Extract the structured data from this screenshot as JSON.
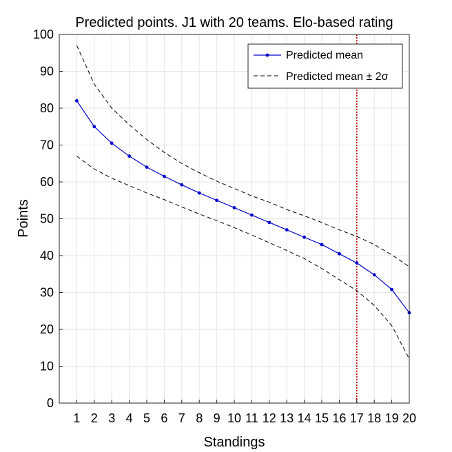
{
  "chart_data": {
    "type": "line",
    "title": "Predicted points. J1 with 20 teams. Elo-based rating",
    "xlabel": "Standings",
    "ylabel": "Points",
    "x": [
      1,
      2,
      3,
      4,
      5,
      6,
      7,
      8,
      9,
      10,
      11,
      12,
      13,
      14,
      15,
      16,
      17,
      18,
      19,
      20
    ],
    "xlim": [
      0,
      20
    ],
    "ylim": [
      0,
      100
    ],
    "yticks": [
      0,
      10,
      20,
      30,
      40,
      50,
      60,
      70,
      80,
      90,
      100
    ],
    "grid": true,
    "legend_position": "top-right",
    "series": [
      {
        "name": "Predicted mean",
        "color": "#0000cc",
        "style": "solid-marker",
        "values": [
          82,
          75,
          70.5,
          67,
          64,
          61.5,
          59.2,
          57,
          55,
          53,
          51,
          49,
          47,
          45,
          43,
          40.5,
          38,
          34.8,
          30.8,
          24.5
        ]
      },
      {
        "name": "Predicted mean ± 2σ",
        "color": "#000000",
        "style": "dashed",
        "values": [
          97,
          86.5,
          80,
          75.5,
          71.5,
          68,
          65,
          62.5,
          60.2,
          58.2,
          56.2,
          54.5,
          52.5,
          50.8,
          49,
          47,
          45.2,
          43,
          40.2,
          37
        ]
      },
      {
        "name": "",
        "color": "#000000",
        "style": "dashed",
        "values": [
          67,
          63.5,
          61,
          59,
          57,
          55.2,
          53.2,
          51.3,
          49.5,
          47.6,
          45.6,
          43.5,
          41.4,
          39.2,
          36.5,
          33.5,
          30.5,
          26.5,
          21,
          12
        ]
      }
    ],
    "vline": {
      "x": 17,
      "color": "#cc0000",
      "style": "dotted"
    }
  }
}
